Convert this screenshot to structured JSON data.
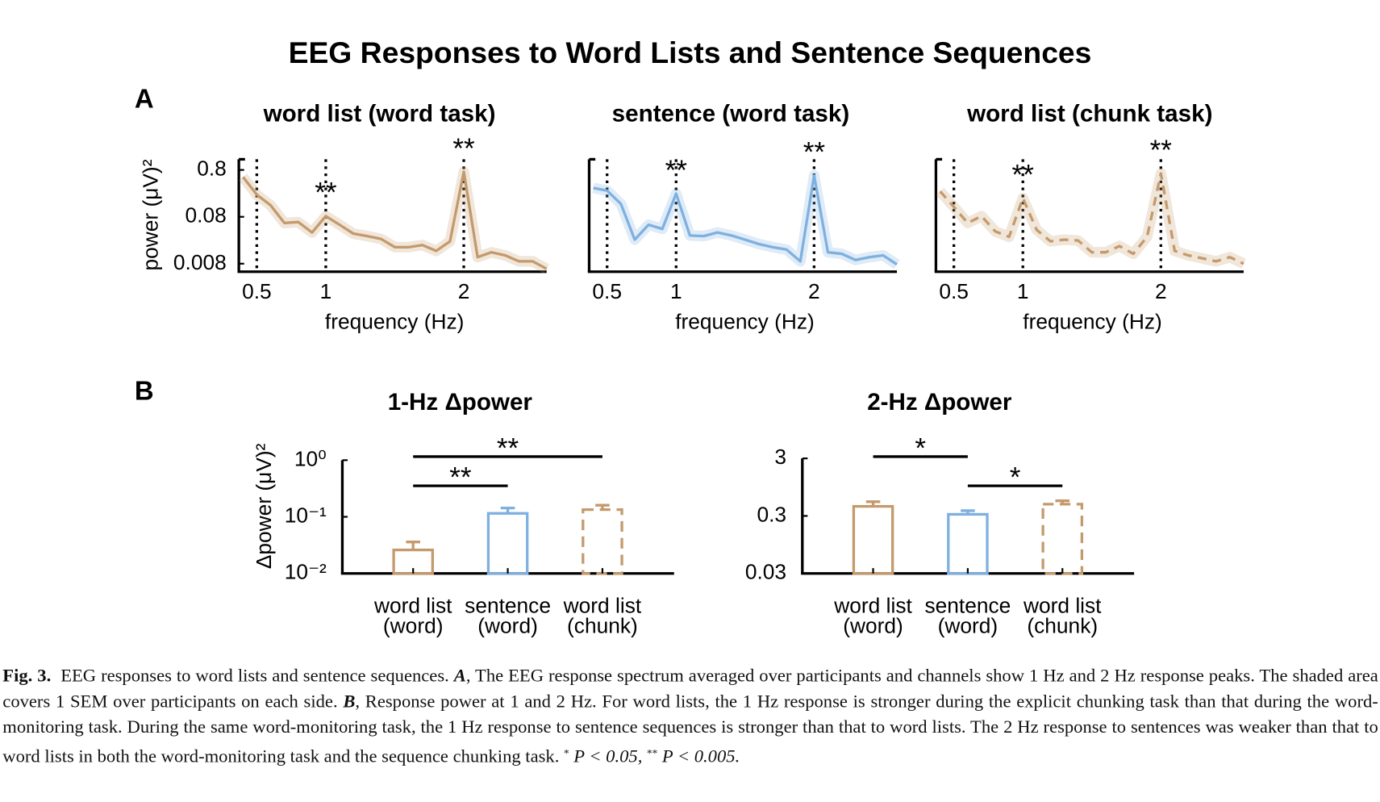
{
  "figure": {
    "title": "EEG Responses to Word Lists and Sentence Sequences",
    "panel_labels": [
      "A",
      "B"
    ]
  },
  "chart_data": [
    {
      "type": "line",
      "title": "word list (word task)",
      "xlabel": "frequency (Hz)",
      "ylabel": "power (μV)²",
      "log_y": true,
      "xlim": [
        0.37,
        2.6
      ],
      "ylim": [
        0.0054,
        1.35
      ],
      "xticks": [
        0.5,
        1,
        2
      ],
      "yticks": [
        0.8,
        0.08,
        0.008
      ],
      "x": [
        0.4,
        0.5,
        0.6,
        0.7,
        0.8,
        0.9,
        1,
        1.1,
        1.2,
        1.3,
        1.4,
        1.5,
        1.6,
        1.7,
        1.8,
        1.9,
        2,
        2.1,
        2.2,
        2.3,
        2.4,
        2.5,
        2.6
      ],
      "series": [
        {
          "color": "#c49a6c",
          "dashed": false,
          "values": [
            0.565,
            0.237,
            0.141,
            0.059,
            0.062,
            0.037,
            0.083,
            0.054,
            0.035,
            0.031,
            0.027,
            0.018,
            0.018,
            0.02,
            0.015,
            0.024,
            0.73,
            0.011,
            0.014,
            0.012,
            0.009,
            0.009,
            0.0062
          ]
        }
      ],
      "annotations": [
        {
          "text": "**",
          "x": 1
        },
        {
          "text": "**",
          "x": 2
        }
      ]
    },
    {
      "type": "line",
      "title": "sentence (word task)",
      "xlabel": "frequency (Hz)",
      "log_y": true,
      "xlim": [
        0.37,
        2.6
      ],
      "ylim": [
        0.0054,
        1.35
      ],
      "xticks": [
        0.5,
        1,
        2
      ],
      "x": [
        0.4,
        0.5,
        0.6,
        0.7,
        0.8,
        0.9,
        1,
        1.1,
        1.2,
        1.3,
        1.4,
        1.5,
        1.6,
        1.7,
        1.8,
        1.9,
        2,
        2.1,
        2.2,
        2.3,
        2.4,
        2.5,
        2.6
      ],
      "series": [
        {
          "color": "#7eb0e0",
          "dashed": false,
          "values": [
            0.33,
            0.29,
            0.15,
            0.026,
            0.054,
            0.044,
            0.25,
            0.032,
            0.031,
            0.037,
            0.032,
            0.026,
            0.021,
            0.018,
            0.016,
            0.009,
            0.61,
            0.014,
            0.013,
            0.0096,
            0.011,
            0.012,
            0.0077
          ]
        }
      ],
      "annotations": [
        {
          "text": "**",
          "x": 1
        },
        {
          "text": "**",
          "x": 2
        }
      ]
    },
    {
      "type": "line",
      "title": "word list (chunk task)",
      "xlabel": "frequency (Hz)",
      "log_y": true,
      "xlim": [
        0.37,
        2.6
      ],
      "ylim": [
        0.0054,
        1.35
      ],
      "xticks": [
        0.5,
        1,
        2
      ],
      "x": [
        0.4,
        0.5,
        0.6,
        0.7,
        0.8,
        0.9,
        1,
        1.1,
        1.2,
        1.3,
        1.4,
        1.5,
        1.6,
        1.7,
        1.8,
        1.9,
        2,
        2.1,
        2.2,
        2.3,
        2.4,
        2.5,
        2.6
      ],
      "series": [
        {
          "color": "#c49a6c",
          "dashed": true,
          "values": [
            0.28,
            0.13,
            0.059,
            0.083,
            0.039,
            0.03,
            0.2,
            0.042,
            0.024,
            0.026,
            0.025,
            0.014,
            0.014,
            0.019,
            0.013,
            0.03,
            0.67,
            0.015,
            0.012,
            0.0104,
            0.009,
            0.011,
            0.008
          ]
        }
      ],
      "annotations": [
        {
          "text": "**",
          "x": 1
        },
        {
          "text": "**",
          "x": 2
        }
      ]
    },
    {
      "type": "bar",
      "title": "1-Hz Δpower",
      "ylabel": "Δpower (μV)²",
      "log_y": true,
      "ylim": [
        0.01,
        1
      ],
      "yticks": [
        {
          "value": 1,
          "label": "10⁰"
        },
        {
          "value": 0.1,
          "label": "10⁻¹"
        },
        {
          "value": 0.01,
          "label": "10⁻²"
        }
      ],
      "categories": [
        [
          "word list",
          "(word)"
        ],
        [
          "sentence",
          "(word)"
        ],
        [
          "word list",
          "(chunk)"
        ]
      ],
      "values": [
        0.026,
        0.115,
        0.134
      ],
      "errors": [
        0.01,
        0.028,
        0.026
      ],
      "colors": [
        "#c49a6c",
        "#7eb0e0",
        "#c49a6c"
      ],
      "dashed": [
        false,
        false,
        true
      ],
      "comparisons": [
        {
          "from": 0,
          "to": 1,
          "label": "**"
        },
        {
          "from": 0,
          "to": 2,
          "label": "**"
        }
      ]
    },
    {
      "type": "bar",
      "title": "2-Hz Δpower",
      "log_y": true,
      "ylim": [
        0.03,
        3
      ],
      "yticks": [
        3,
        0.3,
        0.03
      ],
      "categories": [
        [
          "word list",
          "(word)"
        ],
        [
          "sentence",
          "(word)"
        ],
        [
          "word list",
          "(chunk)"
        ]
      ],
      "values": [
        0.44,
        0.32,
        0.48
      ],
      "errors": [
        0.09,
        0.05,
        0.07
      ],
      "colors": [
        "#c49a6c",
        "#7eb0e0",
        "#c49a6c"
      ],
      "dashed": [
        false,
        false,
        true
      ],
      "comparisons": [
        {
          "from": 0,
          "to": 1,
          "label": "*"
        },
        {
          "from": 1,
          "to": 2,
          "label": "*"
        }
      ]
    }
  ],
  "caption": {
    "parts": [
      "Fig. 3.",
      "EEG responses to word lists and sentence sequences.",
      "A",
      ", The EEG response spectrum averaged over participants and channels show 1 Hz and 2 Hz response peaks. The shaded area covers 1 SEM over participants on each side.",
      "B",
      ", Response power at 1 and 2 Hz. For word lists, the 1 Hz response is stronger during the explicit chunking task than that during the word-monitoring task. During the same word-monitoring task, the 1 Hz response to sentence sequences is stronger than that to word lists. The 2 Hz response to sentences was weaker than that to word lists in both the word-monitoring task and the sequence chunking task.",
      "*",
      "P < 0.05,",
      "**",
      "P < 0.005."
    ]
  }
}
